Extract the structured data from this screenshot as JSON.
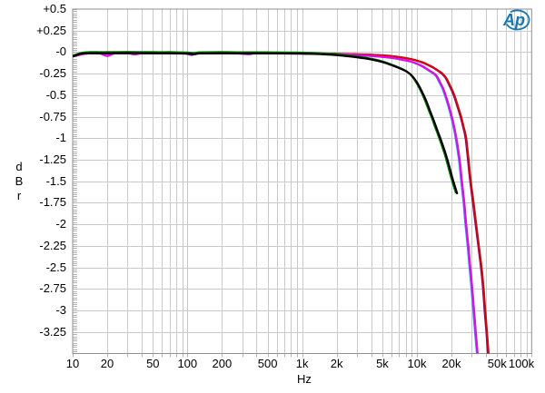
{
  "chart_data": {
    "type": "line",
    "title": "",
    "xlabel": "Hz",
    "ylabel": "dBr",
    "ylabel_stacked": [
      "d",
      "B",
      "r"
    ],
    "x_scale": "log",
    "xlim": [
      10,
      100000
    ],
    "ylim": [
      -3.5,
      0.5
    ],
    "y_major_step": 0.25,
    "y_minor_step": 0.025,
    "grid": true,
    "yticks": [
      {
        "db": 0.5,
        "label": "+0.5"
      },
      {
        "db": 0.25,
        "label": "+0.25"
      },
      {
        "db": 0,
        "label": "-0"
      },
      {
        "db": -0.25,
        "label": "-0.25"
      },
      {
        "db": -0.5,
        "label": "-0.5"
      },
      {
        "db": -0.75,
        "label": "-0.75"
      },
      {
        "db": -1,
        "label": "-1"
      },
      {
        "db": -1.25,
        "label": "-1.25"
      },
      {
        "db": -1.5,
        "label": "-1.5"
      },
      {
        "db": -1.75,
        "label": "-1.75"
      },
      {
        "db": -2,
        "label": "-2"
      },
      {
        "db": -2.25,
        "label": "-2.25"
      },
      {
        "db": -2.5,
        "label": "-2.5"
      },
      {
        "db": -2.75,
        "label": "-2.75"
      },
      {
        "db": -3,
        "label": "-3"
      },
      {
        "db": -3.25,
        "label": "-3.25"
      }
    ],
    "xticks": [
      {
        "f": 10,
        "label": "10"
      },
      {
        "f": 20,
        "label": "20"
      },
      {
        "f": 50,
        "label": "50"
      },
      {
        "f": 100,
        "label": "100"
      },
      {
        "f": 200,
        "label": "200"
      },
      {
        "f": 500,
        "label": "500"
      },
      {
        "f": 1000,
        "label": "1k"
      },
      {
        "f": 2000,
        "label": "2k"
      },
      {
        "f": 5000,
        "label": "5k"
      },
      {
        "f": 10000,
        "label": "10k"
      },
      {
        "f": 20000,
        "label": "20k"
      },
      {
        "f": 50000,
        "label": "50k"
      },
      {
        "f": 100000,
        "label": "100k"
      }
    ],
    "series": [
      {
        "name": "blue-trace",
        "color": "#2222cc",
        "width": 2.2,
        "points": [
          [
            10,
            -0.048
          ],
          [
            13,
            -0.016
          ],
          [
            20,
            -0.014
          ],
          [
            50,
            -0.013
          ],
          [
            100,
            -0.015
          ],
          [
            200,
            -0.013
          ],
          [
            500,
            -0.015
          ],
          [
            1000,
            -0.015
          ],
          [
            1976,
            -0.02
          ],
          [
            2964,
            -0.025
          ],
          [
            3952,
            -0.031
          ],
          [
            4940,
            -0.038
          ],
          [
            5928,
            -0.046
          ],
          [
            6916,
            -0.056
          ],
          [
            7904,
            -0.068
          ],
          [
            8892,
            -0.082
          ],
          [
            9880,
            -0.098
          ],
          [
            10868,
            -0.115
          ],
          [
            11856,
            -0.135
          ],
          [
            12844,
            -0.158
          ],
          [
            13832,
            -0.18
          ],
          [
            14820,
            -0.205
          ],
          [
            15808,
            -0.23
          ],
          [
            16796,
            -0.26
          ],
          [
            17784,
            -0.3
          ],
          [
            18772,
            -0.36
          ],
          [
            19760,
            -0.42
          ],
          [
            20946,
            -0.5
          ],
          [
            22526,
            -0.63
          ],
          [
            24008,
            -0.75
          ],
          [
            25293,
            -0.87
          ],
          [
            26577,
            -1.0
          ],
          [
            27862,
            -1.25
          ],
          [
            29146,
            -1.5
          ],
          [
            30826,
            -1.75
          ],
          [
            32505,
            -2.0
          ],
          [
            34284,
            -2.25
          ],
          [
            36161,
            -2.5
          ],
          [
            37544,
            -2.72
          ],
          [
            38927,
            -3.0
          ],
          [
            40310,
            -3.25
          ],
          [
            41792,
            -3.53
          ]
        ]
      },
      {
        "name": "red-trace",
        "color": "#dd0000",
        "width": 2.2,
        "points": [
          [
            10,
            -0.048
          ],
          [
            13,
            -0.016
          ],
          [
            20,
            -0.014
          ],
          [
            50,
            -0.013
          ],
          [
            100,
            -0.015
          ],
          [
            200,
            -0.013
          ],
          [
            500,
            -0.015
          ],
          [
            1000,
            -0.015
          ],
          [
            2000,
            -0.02
          ],
          [
            3000,
            -0.025
          ],
          [
            4000,
            -0.031
          ],
          [
            5000,
            -0.038
          ],
          [
            6000,
            -0.046
          ],
          [
            7000,
            -0.056
          ],
          [
            8000,
            -0.068
          ],
          [
            9000,
            -0.082
          ],
          [
            10000,
            -0.098
          ],
          [
            11000,
            -0.115
          ],
          [
            12000,
            -0.135
          ],
          [
            13000,
            -0.158
          ],
          [
            14000,
            -0.18
          ],
          [
            15000,
            -0.205
          ],
          [
            16000,
            -0.23
          ],
          [
            17000,
            -0.26
          ],
          [
            18000,
            -0.3
          ],
          [
            19000,
            -0.36
          ],
          [
            20000,
            -0.42
          ],
          [
            21200,
            -0.5
          ],
          [
            22800,
            -0.63
          ],
          [
            24300,
            -0.75
          ],
          [
            25600,
            -0.87
          ],
          [
            26900,
            -1.0
          ],
          [
            28200,
            -1.25
          ],
          [
            29500,
            -1.5
          ],
          [
            31200,
            -1.75
          ],
          [
            32900,
            -2.0
          ],
          [
            34700,
            -2.25
          ],
          [
            36600,
            -2.5
          ],
          [
            38000,
            -2.72
          ],
          [
            39400,
            -3.0
          ],
          [
            40800,
            -3.25
          ],
          [
            42300,
            -3.53
          ]
        ]
      },
      {
        "name": "cyan-trace",
        "color": "#00aacc",
        "width": 2.2,
        "points": [
          [
            10,
            -0.05
          ],
          [
            13,
            -0.018
          ],
          [
            17,
            -0.014
          ],
          [
            20,
            -0.044
          ],
          [
            23,
            -0.016
          ],
          [
            30,
            -0.013
          ],
          [
            34,
            -0.026
          ],
          [
            40,
            -0.013
          ],
          [
            59,
            -0.013
          ],
          [
            94,
            -0.014
          ],
          [
            108,
            -0.032
          ],
          [
            123,
            -0.014
          ],
          [
            246,
            -0.013
          ],
          [
            345,
            -0.024
          ],
          [
            394,
            -0.014
          ],
          [
            788,
            -0.014
          ],
          [
            1478,
            -0.017
          ],
          [
            1970,
            -0.024
          ],
          [
            2955,
            -0.034
          ],
          [
            3940,
            -0.044
          ],
          [
            4925,
            -0.054
          ],
          [
            5910,
            -0.066
          ],
          [
            6895,
            -0.08
          ],
          [
            7880,
            -0.095
          ],
          [
            8865,
            -0.111
          ],
          [
            9850,
            -0.133
          ],
          [
            10835,
            -0.158
          ],
          [
            11820,
            -0.188
          ],
          [
            12805,
            -0.218
          ],
          [
            14480,
            -0.268
          ],
          [
            15760,
            -0.355
          ],
          [
            16745,
            -0.425
          ],
          [
            17533,
            -0.5
          ],
          [
            18715,
            -0.62
          ],
          [
            19897,
            -0.75
          ],
          [
            20685,
            -0.85
          ],
          [
            21769,
            -1.0
          ],
          [
            23246,
            -1.25
          ],
          [
            24330,
            -1.5
          ],
          [
            25512,
            -1.75
          ],
          [
            26497,
            -2.0
          ],
          [
            27679,
            -2.25
          ],
          [
            28762,
            -2.5
          ],
          [
            29944,
            -2.75
          ],
          [
            31028,
            -3.0
          ],
          [
            32111,
            -3.25
          ],
          [
            33441,
            -3.52
          ]
        ]
      },
      {
        "name": "magenta-trace",
        "color": "#ee00ee",
        "width": 2.2,
        "points": [
          [
            10,
            -0.05
          ],
          [
            13,
            -0.018
          ],
          [
            17,
            -0.014
          ],
          [
            20,
            -0.044
          ],
          [
            23,
            -0.016
          ],
          [
            30,
            -0.013
          ],
          [
            35,
            -0.026
          ],
          [
            41,
            -0.013
          ],
          [
            60,
            -0.013
          ],
          [
            95,
            -0.014
          ],
          [
            110,
            -0.032
          ],
          [
            125,
            -0.014
          ],
          [
            250,
            -0.013
          ],
          [
            350,
            -0.024
          ],
          [
            400,
            -0.014
          ],
          [
            800,
            -0.014
          ],
          [
            1500,
            -0.017
          ],
          [
            2000,
            -0.024
          ],
          [
            3000,
            -0.034
          ],
          [
            4000,
            -0.044
          ],
          [
            5000,
            -0.054
          ],
          [
            6000,
            -0.066
          ],
          [
            7000,
            -0.08
          ],
          [
            8000,
            -0.095
          ],
          [
            9000,
            -0.111
          ],
          [
            10000,
            -0.133
          ],
          [
            11000,
            -0.158
          ],
          [
            12000,
            -0.188
          ],
          [
            13000,
            -0.218
          ],
          [
            14700,
            -0.268
          ],
          [
            16000,
            -0.355
          ],
          [
            17000,
            -0.425
          ],
          [
            17800,
            -0.5
          ],
          [
            19000,
            -0.62
          ],
          [
            20200,
            -0.75
          ],
          [
            21000,
            -0.85
          ],
          [
            22100,
            -1.0
          ],
          [
            23600,
            -1.25
          ],
          [
            24700,
            -1.5
          ],
          [
            25900,
            -1.75
          ],
          [
            26900,
            -2.0
          ],
          [
            28100,
            -2.25
          ],
          [
            29200,
            -2.5
          ],
          [
            30400,
            -2.75
          ],
          [
            31500,
            -3.0
          ],
          [
            32600,
            -3.25
          ],
          [
            33950,
            -3.52
          ]
        ]
      },
      {
        "name": "green-trace",
        "color": "#007700",
        "width": 2.2,
        "points": [
          [
            10,
            -0.04
          ],
          [
            12,
            -0.008
          ],
          [
            14,
            0.0
          ],
          [
            20,
            0.0
          ],
          [
            30,
            0.003
          ],
          [
            50,
            0.0
          ],
          [
            70,
            0.0
          ],
          [
            100,
            -0.004
          ],
          [
            113,
            -0.01
          ],
          [
            128,
            -0.002
          ],
          [
            197,
            0.0
          ],
          [
            296,
            -0.002
          ],
          [
            493,
            -0.002
          ],
          [
            788,
            -0.004
          ],
          [
            985,
            -0.006
          ],
          [
            1458,
            -0.013
          ],
          [
            1944,
            -0.023
          ],
          [
            2916,
            -0.048
          ],
          [
            3888,
            -0.073
          ],
          [
            4860,
            -0.103
          ],
          [
            5832,
            -0.138
          ],
          [
            6804,
            -0.173
          ],
          [
            7776,
            -0.208
          ],
          [
            8748,
            -0.258
          ],
          [
            9720,
            -0.338
          ],
          [
            10692,
            -0.438
          ],
          [
            11664,
            -0.548
          ],
          [
            12636,
            -0.668
          ],
          [
            13608,
            -0.778
          ],
          [
            14580,
            -0.888
          ],
          [
            15552,
            -0.988
          ],
          [
            16524,
            -1.088
          ],
          [
            17496,
            -1.188
          ],
          [
            18468,
            -1.298
          ],
          [
            19440,
            -1.408
          ],
          [
            20412,
            -1.508
          ],
          [
            21773,
            -1.628
          ]
        ]
      },
      {
        "name": "black-trace",
        "color": "#000000",
        "width": 2.2,
        "points": [
          [
            10,
            -0.05
          ],
          [
            12,
            -0.018
          ],
          [
            14,
            -0.013
          ],
          [
            20,
            -0.013
          ],
          [
            30,
            -0.011
          ],
          [
            50,
            -0.013
          ],
          [
            70,
            -0.013
          ],
          [
            100,
            -0.018
          ],
          [
            115,
            -0.024
          ],
          [
            130,
            -0.015
          ],
          [
            200,
            -0.013
          ],
          [
            300,
            -0.014
          ],
          [
            500,
            -0.014
          ],
          [
            800,
            -0.016
          ],
          [
            1000,
            -0.018
          ],
          [
            1500,
            -0.025
          ],
          [
            2000,
            -0.035
          ],
          [
            3000,
            -0.06
          ],
          [
            4000,
            -0.085
          ],
          [
            5000,
            -0.115
          ],
          [
            6000,
            -0.15
          ],
          [
            7000,
            -0.185
          ],
          [
            8000,
            -0.22
          ],
          [
            9000,
            -0.27
          ],
          [
            10000,
            -0.35
          ],
          [
            11000,
            -0.45
          ],
          [
            12000,
            -0.56
          ],
          [
            13000,
            -0.68
          ],
          [
            14000,
            -0.79
          ],
          [
            15000,
            -0.9
          ],
          [
            16000,
            -1.0
          ],
          [
            17000,
            -1.1
          ],
          [
            18000,
            -1.2
          ],
          [
            19000,
            -1.31
          ],
          [
            20000,
            -1.42
          ],
          [
            21000,
            -1.52
          ],
          [
            22400,
            -1.64
          ]
        ]
      }
    ],
    "logo": {
      "text": "Ap",
      "color": "#1777b4"
    }
  },
  "colors": {
    "background": "#ffffff",
    "grid": "#c9c9c9",
    "frame": "#909090",
    "tick": "#b4b4b4",
    "text": "#000000"
  }
}
